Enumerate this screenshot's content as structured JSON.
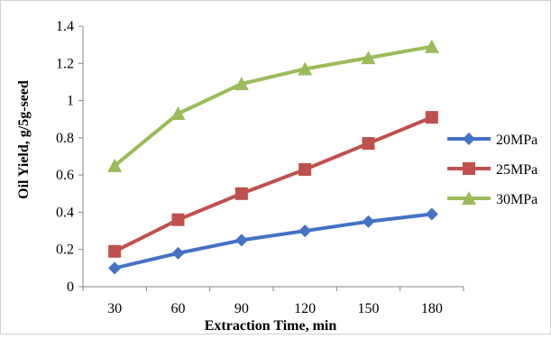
{
  "chart_data": {
    "type": "line",
    "title": "",
    "xlabel": "Extraction Time, min",
    "ylabel": "Oil Yield, g/5g-seed",
    "x": [
      30,
      60,
      90,
      120,
      150,
      180
    ],
    "ylim": [
      0,
      1.4
    ],
    "y_ticks": [
      "0",
      "0.2",
      "0.4",
      "0.6",
      "0.8",
      "1",
      "1.2",
      "1.4"
    ],
    "y_tick_values": [
      0,
      0.2,
      0.4,
      0.6,
      0.8,
      1.0,
      1.2,
      1.4
    ],
    "grid": false,
    "legend_position": "right",
    "series": [
      {
        "name": "20MPa",
        "color": "#4472C4",
        "marker": "diamond",
        "values": [
          0.1,
          0.18,
          0.25,
          0.3,
          0.35,
          0.39
        ]
      },
      {
        "name": "25MPa",
        "color": "#C0504D",
        "marker": "square",
        "values": [
          0.19,
          0.36,
          0.5,
          0.63,
          0.77,
          0.91
        ]
      },
      {
        "name": "30MPa",
        "color": "#9BBB59",
        "marker": "triangle",
        "values": [
          0.65,
          0.93,
          1.09,
          1.17,
          1.23,
          1.29
        ]
      }
    ]
  }
}
